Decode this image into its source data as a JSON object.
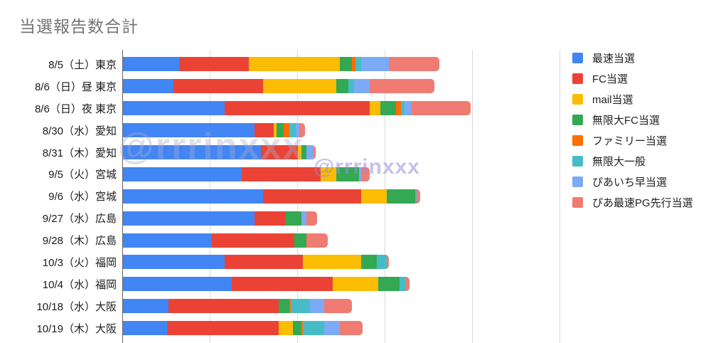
{
  "page": {
    "title": "当選報告数合計"
  },
  "watermarks": {
    "large": "@rrrinxxx",
    "small": "@rrrinxxx"
  },
  "chart_data": {
    "type": "bar",
    "orientation": "horizontal",
    "stacked": true,
    "title": "当選報告数合計",
    "grid": true,
    "legend_position": "right",
    "units": "relative units (x-axis tick labels cropped out of view); gridlines every 25 units",
    "xlim": [
      0,
      125
    ],
    "gridline_interval": 25,
    "categories": [
      "8/5（土）東京",
      "8/6（日）昼 東京",
      "8/6（日）夜 東京",
      "8/30（水）愛知",
      "8/31（木）愛知",
      "9/5（火）宮城",
      "9/6（水）宮城",
      "9/27（水）広島",
      "9/28（木）広島",
      "10/3（火）福岡",
      "10/4（水）福岡",
      "10/18（水）大阪",
      "10/19（木）大阪"
    ],
    "series": [
      {
        "name": "最速当選",
        "color": "#4285F4",
        "values": [
          16,
          14.5,
          29,
          37.5,
          39.5,
          34,
          40,
          37.5,
          25.5,
          29,
          31,
          13,
          12.5
        ]
      },
      {
        "name": "FC当選",
        "color": "#EA4335",
        "values": [
          20,
          25.5,
          41.5,
          5.5,
          10.5,
          22.5,
          28,
          9,
          23.5,
          22.5,
          29,
          31.5,
          32
        ]
      },
      {
        "name": "mail当選",
        "color": "#FBBC04",
        "values": [
          26,
          21,
          3,
          1,
          1,
          4.5,
          7.5,
          0,
          0,
          16.5,
          13,
          0,
          4
        ]
      },
      {
        "name": "無限大FC当選",
        "color": "#34A853",
        "values": [
          3.5,
          3.5,
          4.5,
          2,
          1.5,
          6.5,
          8,
          4.5,
          3.5,
          4.5,
          6,
          3,
          2.5
        ]
      },
      {
        "name": "ファミリー当選",
        "color": "#FF6D01",
        "values": [
          1,
          0,
          1.5,
          1.5,
          0,
          0,
          0,
          0,
          0,
          0,
          0,
          0.5,
          0.5
        ]
      },
      {
        "name": "無限大一般",
        "color": "#46BDC6",
        "values": [
          1.5,
          1.5,
          1,
          2,
          0,
          0,
          0.5,
          0,
          0,
          3,
          2,
          5.5,
          6
        ]
      },
      {
        "name": "ぴあいち早当選",
        "color": "#7BAAF7",
        "values": [
          8,
          4.5,
          2,
          1,
          2,
          0.5,
          0,
          1.5,
          0,
          0,
          0,
          4,
          4.5
        ]
      },
      {
        "name": "ぴあ最速PG先行当選",
        "color": "#F07B72",
        "values": [
          14.5,
          18.5,
          17,
          1.5,
          0.5,
          2.5,
          1,
          3,
          6,
          0.5,
          1,
          8,
          6.5
        ]
      }
    ]
  }
}
